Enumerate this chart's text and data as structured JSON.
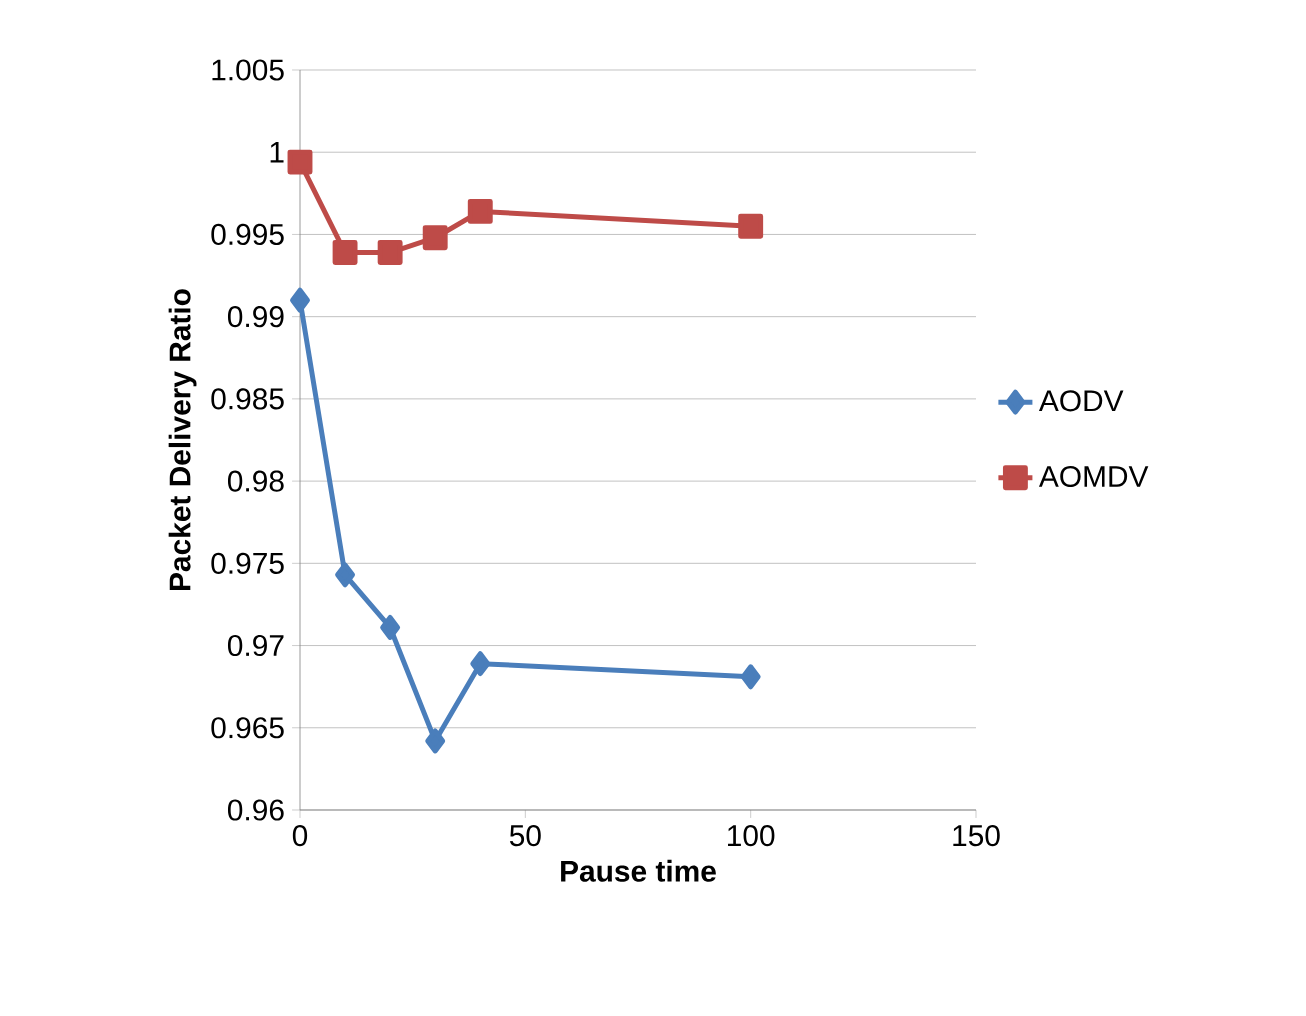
{
  "chart_data": {
    "type": "line",
    "xlabel": "Pause time",
    "ylabel": "Packet Delivery Ratio",
    "xlim": [
      0,
      150
    ],
    "xticks": [
      0,
      50,
      100,
      150
    ],
    "ylim": [
      0.96,
      1.005
    ],
    "yticks": [
      0.96,
      0.965,
      0.97,
      0.975,
      0.98,
      0.985,
      0.99,
      0.995,
      1,
      1.005
    ],
    "grid": "y",
    "legend": "right",
    "series": [
      {
        "name": "AODV",
        "color": "#4a7ebb",
        "marker": "diamond",
        "x": [
          0,
          10,
          20,
          30,
          40,
          100
        ],
        "values": [
          0.991,
          0.9743,
          0.9711,
          0.9642,
          0.9689,
          0.9681
        ]
      },
      {
        "name": "AOMDV",
        "color": "#be4b48",
        "marker": "square",
        "x": [
          0,
          10,
          20,
          30,
          40,
          100
        ],
        "values": [
          0.9994,
          0.9939,
          0.9939,
          0.9948,
          0.9964,
          0.9955
        ]
      }
    ]
  }
}
